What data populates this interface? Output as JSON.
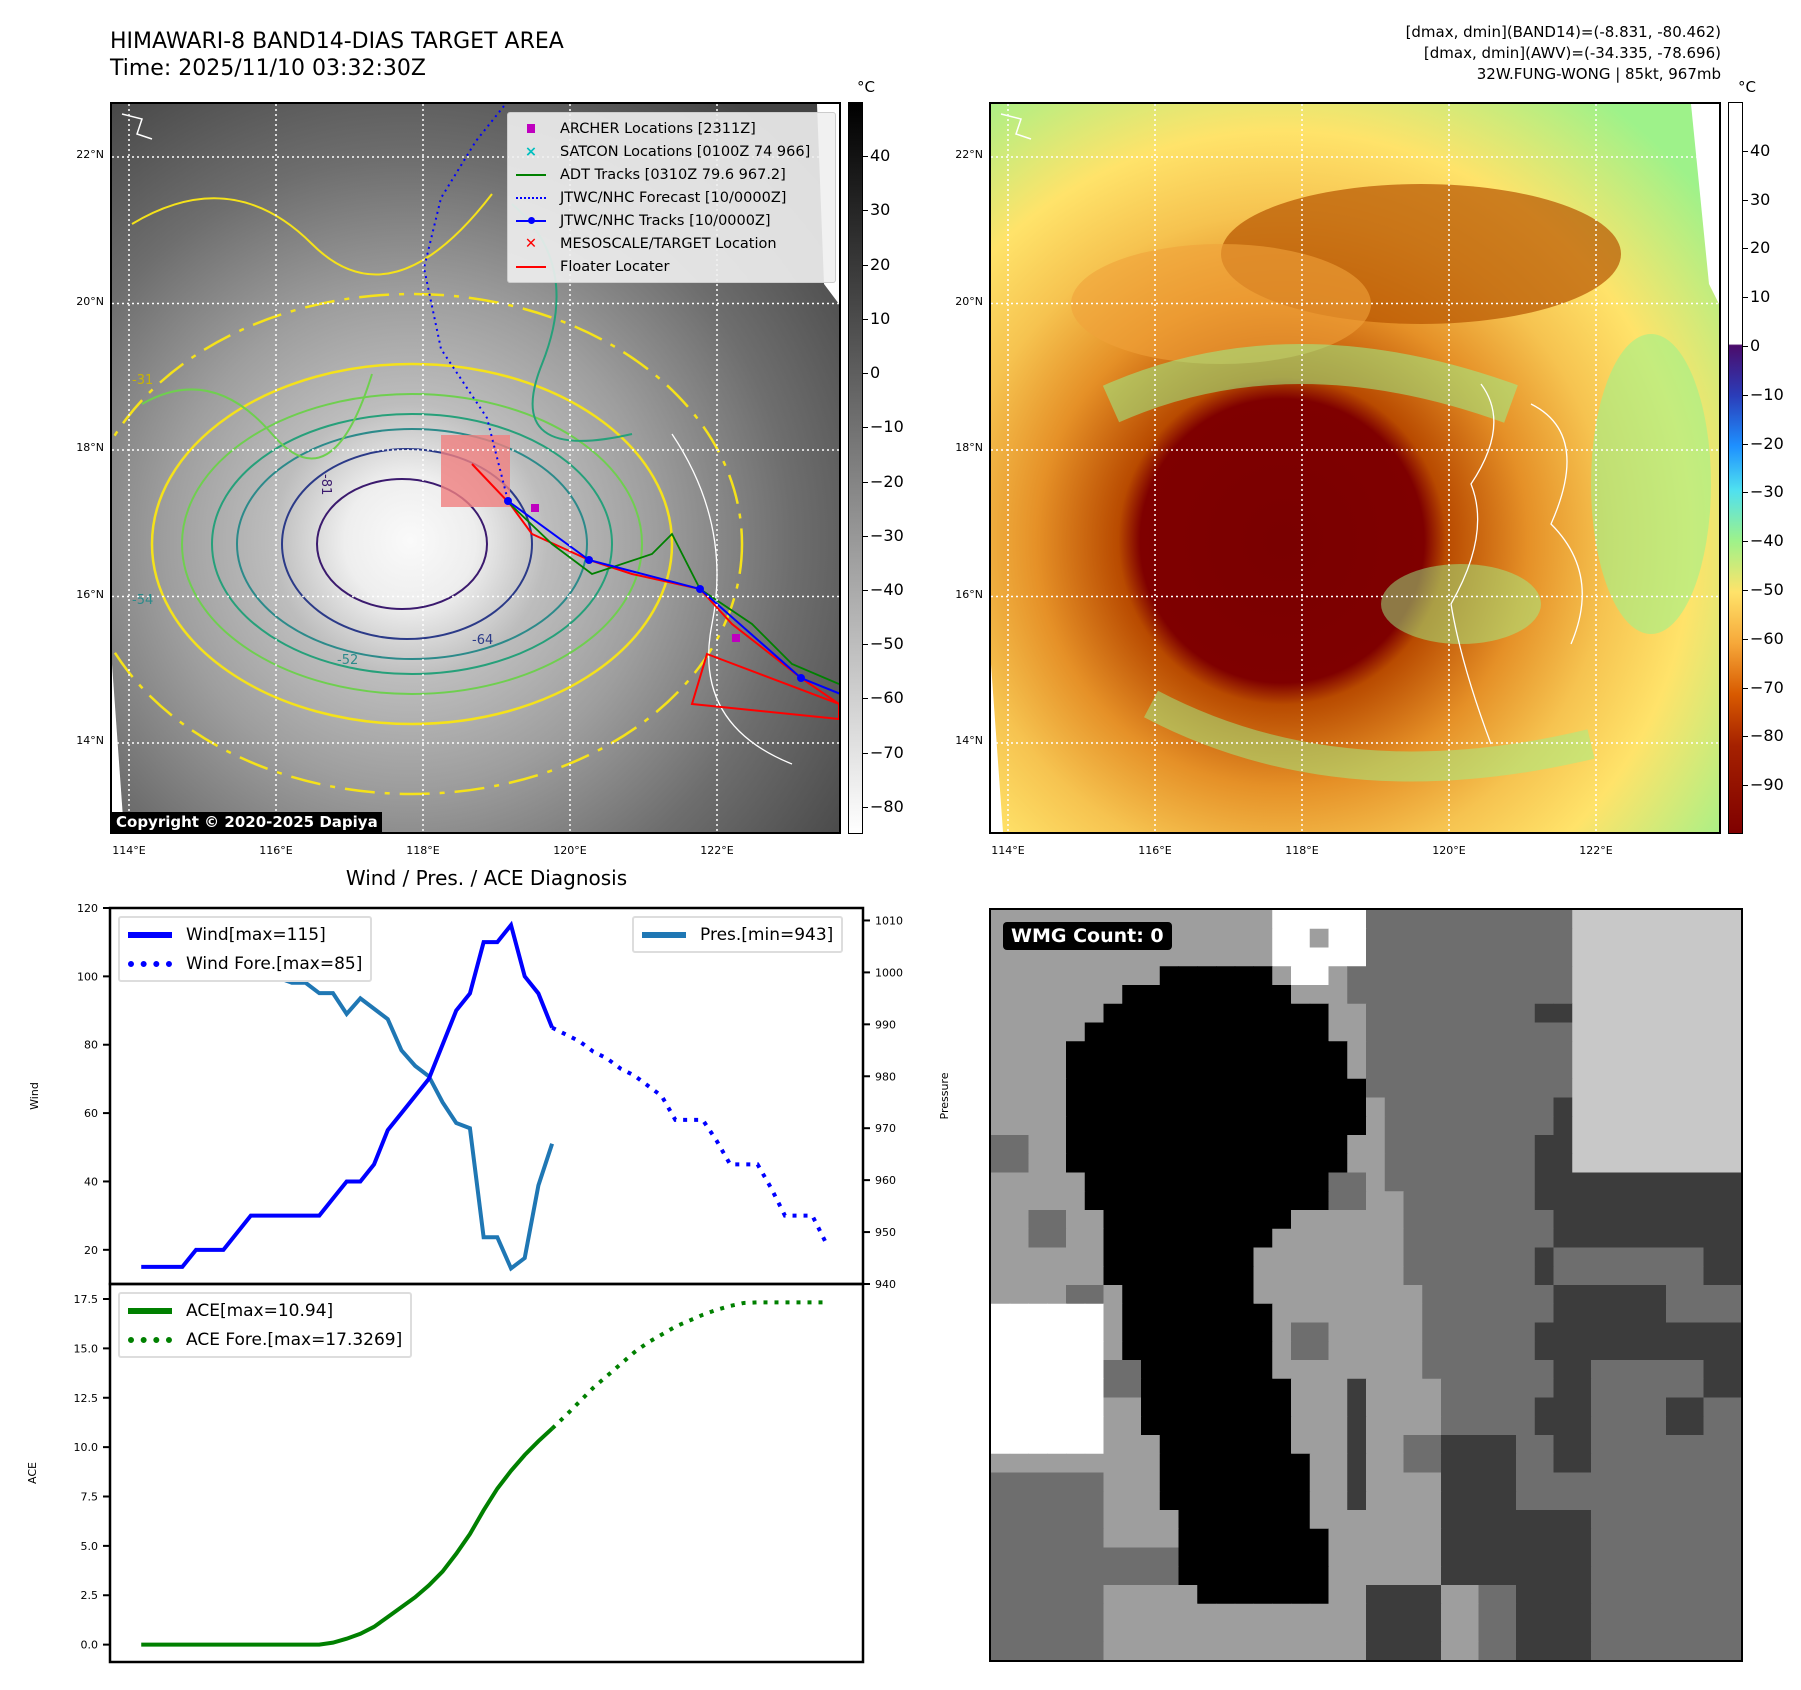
{
  "header": {
    "title_line1": "HIMAWARI-8 BAND14-DIAS TARGET AREA",
    "title_line2": "Time: 2025/11/10 03:32:30Z",
    "info_line1": "[dmax, dmin](BAND14)=(-8.831, -80.462)",
    "info_line2": "[dmax, dmin](AWV)=(-34.335, -78.696)",
    "info_line3": "32W.FUNG-WONG | 85kt, 967mb"
  },
  "map_left": {
    "unit": "°C",
    "colorbar_ticks": [
      "40",
      "30",
      "20",
      "10",
      "0",
      "−10",
      "−20",
      "−30",
      "−40",
      "−50",
      "−60",
      "−70",
      "−80"
    ],
    "colorbar_values": [
      40,
      30,
      20,
      10,
      0,
      -10,
      -20,
      -30,
      -40,
      -50,
      -60,
      -70,
      -80
    ],
    "colorbar_range": [
      -85,
      50
    ],
    "copyright": "Copyright © 2020-2025 Dapiya",
    "contour_labels": [
      "-81",
      "-64",
      "-52",
      "-54",
      "-31"
    ],
    "legend": [
      {
        "label": "ARCHER Locations [2311Z]",
        "color": "#bf00bf"
      },
      {
        "label": "SATCON Locations [0100Z 74 966]",
        "color": "#00bfbf"
      },
      {
        "label": "ADT Tracks [0310Z 79.6 967.2]",
        "color": "#008000"
      },
      {
        "label": "JTWC/NHC Forecast [10/0000Z]",
        "color": "#0000ff"
      },
      {
        "label": "JTWC/NHC Tracks [10/0000Z]",
        "color": "#0000ff"
      },
      {
        "label": "MESOSCALE/TARGET Location",
        "color": "#ff0000"
      },
      {
        "label": "Floater Locater",
        "color": "#ff0000"
      }
    ]
  },
  "map_right": {
    "unit": "°C",
    "colorbar_ticks": [
      "40",
      "30",
      "20",
      "10",
      "0",
      "−10",
      "−20",
      "−30",
      "−40",
      "−50",
      "−60",
      "−70",
      "−80",
      "−90"
    ],
    "colorbar_values": [
      40,
      30,
      20,
      10,
      0,
      -10,
      -20,
      -30,
      -40,
      -50,
      -60,
      -70,
      -80,
      -90
    ],
    "colorbar_range": [
      -100,
      50
    ]
  },
  "grid": {
    "lat_labels": [
      "22°N",
      "20°N",
      "18°N",
      "16°N",
      "14°N"
    ],
    "lat_values": [
      22,
      20,
      18,
      16,
      14
    ],
    "lon_labels": [
      "114°E",
      "116°E",
      "118°E",
      "120°E",
      "122°E"
    ],
    "lon_values": [
      114,
      116,
      118,
      120,
      122
    ]
  },
  "diagnosis": {
    "title": "Wind / Pres. / ACE Diagnosis",
    "wmg_label": "WMG Count: 0"
  },
  "chart_data": [
    {
      "type": "line",
      "title": "Wind / Pres. / ACE Diagnosis",
      "ylabel": "Wind",
      "ylabel_right": "Pressure",
      "ylim": [
        10,
        120
      ],
      "ylim_right": [
        940,
        1012.4
      ],
      "xlim": [
        -2.28,
        52.7
      ],
      "yticks": [
        20,
        40,
        60,
        80,
        100,
        120
      ],
      "yticks_right": [
        940,
        950,
        960,
        970,
        980,
        990,
        1000,
        1010
      ],
      "series": [
        {
          "name": "Wind[max=115]",
          "axis": "left",
          "color": "#0000ff",
          "style": "solid",
          "x_start": 0,
          "values": [
            15,
            15,
            15,
            15,
            20,
            20,
            20,
            25,
            30,
            30,
            30,
            30,
            30,
            30,
            35,
            40,
            40,
            45,
            55,
            60,
            65,
            70,
            80,
            90,
            95,
            110,
            110,
            115,
            100,
            95,
            85
          ]
        },
        {
          "name": "Wind Fore.[max=85]",
          "axis": "left",
          "color": "#0000ff",
          "style": "dotted",
          "x_start": 30,
          "values": [
            85,
            83,
            81,
            78,
            76,
            73,
            71,
            68,
            65,
            58,
            58,
            58,
            52,
            45,
            45,
            45,
            38,
            30,
            30,
            30,
            22
          ]
        },
        {
          "name": "Pres.[min=943]",
          "axis": "right",
          "color": "#1f77b4",
          "style": "solid",
          "x_start": 0,
          "values": [
            1009,
            1006,
            1006,
            1006,
            1005,
            1004,
            999,
            1000,
            1000,
            1000,
            999,
            998,
            998,
            996,
            996,
            992,
            995,
            993,
            991,
            985,
            982,
            980,
            975,
            971,
            970,
            949,
            949,
            943,
            945,
            959,
            967
          ]
        }
      ]
    },
    {
      "type": "line",
      "ylabel": "ACE",
      "ylim": [
        -0.88,
        18.26
      ],
      "xlim": [
        -2.28,
        52.7
      ],
      "yticks": [
        0.0,
        2.5,
        5.0,
        7.5,
        10.0,
        12.5,
        15.0,
        17.5
      ],
      "ytick_labels": [
        "0.0",
        "2.5",
        "5.0",
        "7.5",
        "10.0",
        "12.5",
        "15.0",
        "17.5"
      ],
      "series": [
        {
          "name": "ACE[max=10.94]",
          "color": "#008000",
          "style": "solid",
          "x_start": 0,
          "values": [
            0,
            0,
            0,
            0,
            0,
            0,
            0,
            0,
            0,
            0,
            0,
            0,
            0,
            0,
            0.1,
            0.3,
            0.55,
            0.9,
            1.4,
            1.9,
            2.4,
            3.0,
            3.7,
            4.6,
            5.6,
            6.8,
            7.9,
            8.8,
            9.6,
            10.3,
            10.94
          ]
        },
        {
          "name": "ACE Fore.[max=17.3269]",
          "color": "#008000",
          "style": "dotted",
          "x_start": 30,
          "values": [
            10.94,
            11.6,
            12.3,
            13.0,
            13.6,
            14.2,
            14.8,
            15.3,
            15.7,
            16.1,
            16.4,
            16.7,
            16.95,
            17.15,
            17.3,
            17.33,
            17.33,
            17.33,
            17.33,
            17.33,
            17.33
          ]
        }
      ]
    }
  ]
}
